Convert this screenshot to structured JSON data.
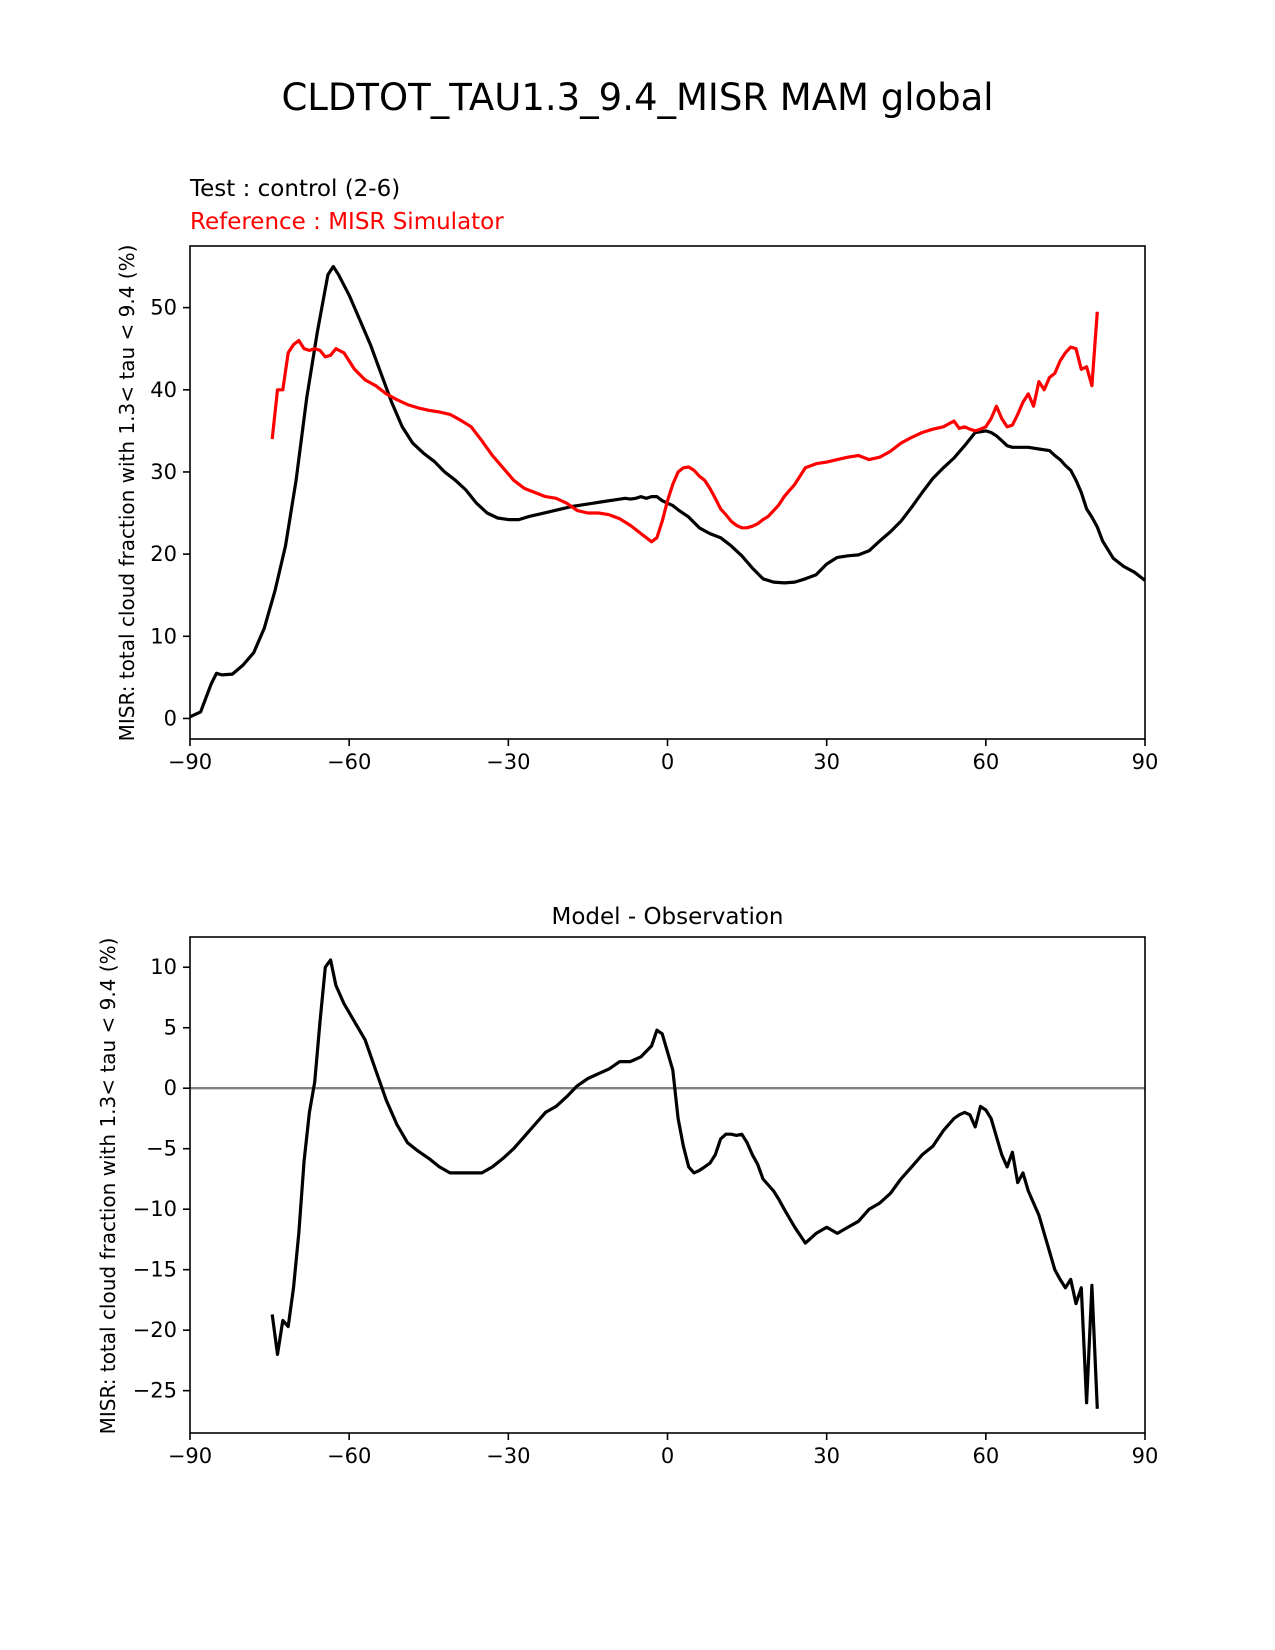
{
  "figure": {
    "suptitle": "CLDTOT_TAU1.3_9.4_MISR MAM global"
  },
  "colors": {
    "test": "#000000",
    "reference": "#ff0000",
    "zero_line": "#808080"
  },
  "chart_data": [
    {
      "type": "line",
      "test_label": "Test : control (2-6)",
      "reference_label": "Reference : MISR Simulator",
      "ylabel": "MISR: total cloud fraction with 1.3< tau < 9.4 (%)",
      "xlim": [
        -90,
        90
      ],
      "ylim": [
        -2.5,
        57.5
      ],
      "xticks": [
        -90,
        -60,
        -30,
        0,
        30,
        60,
        90
      ],
      "xtick_labels": [
        "−90",
        "−60",
        "−30",
        "0",
        "30",
        "60",
        "90"
      ],
      "yticks": [
        0,
        10,
        20,
        30,
        40,
        50
      ],
      "ytick_labels": [
        "0",
        "10",
        "20",
        "30",
        "40",
        "50"
      ],
      "series": [
        {
          "key": "test",
          "x": [
            -90,
            -88,
            -87,
            -86,
            -85,
            -84,
            -82,
            -80,
            -78,
            -76,
            -74,
            -72,
            -70,
            -68,
            -66,
            -65,
            -64,
            -63,
            -62,
            -60,
            -58,
            -56,
            -54,
            -52,
            -50,
            -48,
            -46,
            -44,
            -42,
            -40,
            -38,
            -36,
            -34,
            -32,
            -30,
            -28,
            -26,
            -24,
            -22,
            -20,
            -18,
            -16,
            -14,
            -12,
            -10,
            -8,
            -7,
            -6,
            -5,
            -4,
            -3,
            -2,
            -1,
            0,
            1,
            2,
            4,
            6,
            8,
            10,
            12,
            14,
            16,
            18,
            20,
            22,
            24,
            26,
            28,
            30,
            32,
            34,
            36,
            38,
            40,
            42,
            44,
            46,
            48,
            50,
            52,
            54,
            56,
            58,
            60,
            61,
            62,
            63,
            64,
            65,
            66,
            68,
            70,
            72,
            73,
            74,
            75,
            76,
            77,
            78,
            79,
            80,
            81,
            82,
            84,
            86,
            88,
            90
          ],
          "y": [
            0.2,
            0.8,
            2.5,
            4.2,
            5.5,
            5.3,
            5.4,
            6.5,
            8.0,
            11.0,
            15.5,
            21.0,
            29.0,
            39.0,
            47.0,
            50.5,
            54.0,
            55.0,
            54.0,
            51.5,
            48.5,
            45.5,
            42.0,
            38.5,
            35.5,
            33.5,
            32.3,
            31.3,
            30.0,
            29.0,
            27.8,
            26.2,
            25.0,
            24.4,
            24.2,
            24.2,
            24.6,
            24.9,
            25.2,
            25.5,
            25.8,
            26.0,
            26.2,
            26.4,
            26.6,
            26.8,
            26.7,
            26.8,
            27.0,
            26.8,
            27.0,
            27.0,
            26.5,
            26.2,
            25.9,
            25.4,
            24.5,
            23.2,
            22.5,
            22.0,
            21.0,
            19.8,
            18.3,
            17.0,
            16.6,
            16.5,
            16.6,
            17.0,
            17.5,
            18.8,
            19.6,
            19.8,
            19.9,
            20.4,
            21.6,
            22.7,
            24.0,
            25.7,
            27.5,
            29.2,
            30.5,
            31.7,
            33.2,
            34.8,
            35.0,
            34.8,
            34.4,
            33.8,
            33.2,
            33.0,
            33.0,
            33.0,
            32.8,
            32.6,
            32.0,
            31.5,
            30.8,
            30.2,
            29.0,
            27.5,
            25.5,
            24.5,
            23.3,
            21.6,
            19.5,
            18.5,
            17.8,
            16.8
          ]
        },
        {
          "key": "reference",
          "x": [
            -74.5,
            -73.5,
            -72.5,
            -71.5,
            -70.5,
            -69.5,
            -68.5,
            -67.5,
            -66.5,
            -65.5,
            -64.5,
            -63.5,
            -62.5,
            -61,
            -59,
            -57,
            -55,
            -53,
            -51,
            -49,
            -47,
            -45,
            -43,
            -41,
            -39,
            -37,
            -35,
            -33,
            -31,
            -29,
            -27,
            -25,
            -23,
            -21,
            -19,
            -17,
            -15,
            -13,
            -11,
            -9,
            -7,
            -5,
            -3,
            -2,
            -1,
            0,
            1,
            2,
            3,
            4,
            5,
            6,
            7,
            8,
            9,
            10,
            11,
            12,
            13,
            14,
            15,
            16,
            17,
            18,
            19,
            20,
            21,
            22,
            24,
            26,
            28,
            30,
            32,
            34,
            36,
            38,
            40,
            42,
            44,
            46,
            48,
            50,
            52,
            54,
            55,
            56,
            57,
            58,
            59,
            60,
            61,
            62,
            63,
            64,
            65,
            66,
            67,
            68,
            69,
            70,
            71,
            72,
            73,
            74,
            75,
            76,
            77,
            78,
            79,
            80,
            81
          ],
          "y": [
            34.0,
            40.0,
            40.0,
            44.5,
            45.5,
            46.0,
            45.0,
            44.8,
            45.0,
            44.8,
            44.0,
            44.2,
            45.0,
            44.5,
            42.5,
            41.2,
            40.5,
            39.5,
            38.8,
            38.2,
            37.8,
            37.5,
            37.3,
            37.0,
            36.3,
            35.5,
            33.8,
            32.0,
            30.5,
            29.0,
            28.0,
            27.5,
            27.0,
            26.8,
            26.2,
            25.3,
            25.0,
            25.0,
            24.8,
            24.3,
            23.5,
            22.5,
            21.5,
            22.0,
            24.0,
            26.5,
            28.5,
            30.0,
            30.5,
            30.6,
            30.2,
            29.5,
            29.0,
            28.0,
            26.8,
            25.5,
            24.8,
            24.0,
            23.5,
            23.2,
            23.2,
            23.4,
            23.7,
            24.2,
            24.6,
            25.3,
            26.0,
            27.0,
            28.5,
            30.5,
            31.0,
            31.2,
            31.5,
            31.8,
            32.0,
            31.5,
            31.8,
            32.5,
            33.5,
            34.2,
            34.8,
            35.2,
            35.5,
            36.2,
            35.3,
            35.5,
            35.2,
            35.0,
            35.2,
            35.5,
            36.5,
            38.0,
            36.5,
            35.5,
            35.7,
            37.0,
            38.5,
            39.5,
            38.0,
            41.0,
            40.0,
            41.5,
            42.0,
            43.5,
            44.5,
            45.2,
            45.0,
            42.5,
            42.8,
            40.5,
            49.5
          ]
        }
      ]
    },
    {
      "type": "line",
      "title": "Model - Observation",
      "ylabel": "MISR: total cloud fraction with 1.3< tau < 9.4 (%)",
      "xlim": [
        -90,
        90
      ],
      "ylim": [
        -28.5,
        12.5
      ],
      "xticks": [
        -90,
        -60,
        -30,
        0,
        30,
        60,
        90
      ],
      "xtick_labels": [
        "−90",
        "−60",
        "−30",
        "0",
        "30",
        "60",
        "90"
      ],
      "yticks": [
        10,
        5,
        0,
        -5,
        -10,
        -15,
        -20,
        -25
      ],
      "ytick_labels": [
        "10",
        "5",
        "0",
        "−5",
        "−10",
        "−15",
        "−20",
        "−25"
      ],
      "zero_line": 0,
      "series": [
        {
          "key": "diff",
          "x": [
            -74.5,
            -73.5,
            -72.5,
            -71.5,
            -70.5,
            -69.5,
            -68.5,
            -67.5,
            -66.5,
            -65.5,
            -64.5,
            -63.5,
            -62.5,
            -61,
            -59,
            -57,
            -55,
            -53,
            -51,
            -49,
            -47,
            -45,
            -43,
            -41,
            -39,
            -37,
            -35,
            -33,
            -31,
            -29,
            -27,
            -25,
            -23,
            -21,
            -19,
            -17,
            -15,
            -13,
            -11,
            -9,
            -7,
            -5,
            -3,
            -2,
            -1,
            0,
            1,
            2,
            3,
            4,
            5,
            6,
            7,
            8,
            9,
            10,
            11,
            12,
            13,
            14,
            15,
            16,
            17,
            18,
            19,
            20,
            21,
            22,
            24,
            26,
            28,
            30,
            32,
            34,
            36,
            38,
            40,
            42,
            44,
            46,
            48,
            50,
            52,
            54,
            55,
            56,
            57,
            58,
            59,
            60,
            61,
            62,
            63,
            64,
            65,
            66,
            67,
            68,
            69,
            70,
            71,
            72,
            73,
            74,
            75,
            76,
            77,
            78,
            79,
            80,
            81
          ],
          "y": [
            -18.7,
            -22.0,
            -19.2,
            -19.7,
            -16.5,
            -12.0,
            -6.0,
            -2.0,
            0.5,
            5.5,
            10.0,
            10.6,
            8.5,
            7.0,
            5.5,
            4.0,
            1.5,
            -1.0,
            -3.0,
            -4.5,
            -5.2,
            -5.8,
            -6.5,
            -7.0,
            -7.0,
            -7.0,
            -7.0,
            -6.5,
            -5.8,
            -5.0,
            -4.0,
            -3.0,
            -2.0,
            -1.5,
            -0.7,
            0.2,
            0.8,
            1.2,
            1.6,
            2.2,
            2.2,
            2.6,
            3.5,
            4.8,
            4.5,
            3.0,
            1.5,
            -2.5,
            -4.8,
            -6.5,
            -7.0,
            -6.8,
            -6.5,
            -6.2,
            -5.5,
            -4.2,
            -3.8,
            -3.8,
            -3.9,
            -3.8,
            -4.5,
            -5.5,
            -6.3,
            -7.5,
            -8.0,
            -8.5,
            -9.2,
            -10.0,
            -11.5,
            -12.8,
            -12.0,
            -11.5,
            -12.0,
            -11.5,
            -11.0,
            -10.0,
            -9.5,
            -8.7,
            -7.5,
            -6.5,
            -5.5,
            -4.8,
            -3.5,
            -2.5,
            -2.2,
            -2.0,
            -2.2,
            -3.2,
            -1.5,
            -1.8,
            -2.5,
            -4.0,
            -5.5,
            -6.5,
            -5.3,
            -7.8,
            -7.0,
            -8.5,
            -9.5,
            -10.5,
            -12.0,
            -13.5,
            -15.0,
            -15.8,
            -16.5,
            -15.8,
            -17.8,
            -16.5,
            -26.0,
            -16.3,
            -26.5
          ]
        }
      ]
    }
  ]
}
